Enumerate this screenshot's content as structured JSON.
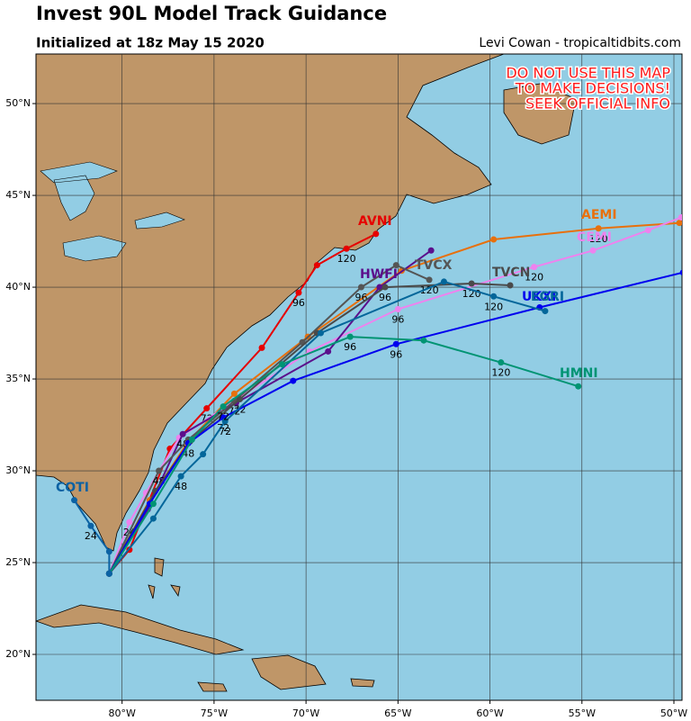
{
  "chart_data": {
    "type": "map",
    "title": "Invest 90L Model Track Guidance",
    "subtitle": "Initialized at 18z May 15 2020",
    "credit": "Levi Cowan - tropicaltidbits.com",
    "warning": [
      "DO NOT USE THIS MAP",
      "TO MAKE DECISIONS!",
      "SEEK OFFICIAL INFO"
    ],
    "xlim": [
      -84.68,
      -49.56
    ],
    "ylim": [
      17.5,
      52.7
    ],
    "xticks": [
      {
        "value": -80,
        "label": "80°W"
      },
      {
        "value": -75,
        "label": "75°W"
      },
      {
        "value": -70,
        "label": "70°W"
      },
      {
        "value": -65,
        "label": "65°W"
      },
      {
        "value": -60,
        "label": "60°W"
      },
      {
        "value": -55,
        "label": "55°W"
      },
      {
        "value": -50,
        "label": "50°W"
      }
    ],
    "yticks": [
      {
        "value": 20,
        "label": "20°N"
      },
      {
        "value": 25,
        "label": "25°N"
      },
      {
        "value": 30,
        "label": "30°N"
      },
      {
        "value": 35,
        "label": "35°N"
      },
      {
        "value": 40,
        "label": "40°N"
      },
      {
        "value": 45,
        "label": "45°N"
      },
      {
        "value": 50,
        "label": "50°N"
      }
    ],
    "grid": true,
    "series": [
      {
        "name": "AVNI",
        "color": "#e60000",
        "lon": [
          -80.7,
          -79.6,
          -77.4,
          -75.4,
          -72.4,
          -70.4,
          -69.4,
          -67.8,
          -66.2
        ],
        "lat": [
          24.4,
          25.7,
          31.2,
          33.4,
          36.7,
          39.7,
          41.2,
          42.1,
          42.9
        ],
        "hour_labels": [
          null,
          null,
          null,
          72,
          null,
          96,
          null,
          120,
          null
        ]
      },
      {
        "name": "AEMI",
        "color": "#e8700c",
        "lon": [
          -80.7,
          -78.5,
          -76.4,
          -73.9,
          -69.9,
          -64.8,
          -59.8,
          -54.1,
          -49.7
        ],
        "lat": [
          24.4,
          28.4,
          31.6,
          34.2,
          37.3,
          40.9,
          42.6,
          43.2,
          43.5
        ],
        "hour_labels": [
          null,
          null,
          null,
          null,
          null,
          null,
          null,
          120,
          null
        ]
      },
      {
        "name": "CEMI",
        "color": "#ee82ee",
        "lon": [
          -80.7,
          -79.6,
          -78.7,
          -76.9,
          -73.9,
          -69.8,
          -65.0,
          -57.6,
          -54.4,
          -51.4,
          -49.6
        ],
        "lat": [
          24.4,
          27.2,
          28.8,
          31.8,
          33.8,
          36.5,
          38.8,
          41.1,
          42.0,
          43.1,
          43.8
        ],
        "hour_labels": [
          null,
          24,
          null,
          null,
          null,
          null,
          96,
          120,
          null,
          null,
          null
        ]
      },
      {
        "name": "HWFI",
        "color": "#5b0f8c",
        "lon": [
          -80.7,
          -78.6,
          -76.7,
          -73.8,
          -68.8,
          -66.0,
          -63.2
        ],
        "lat": [
          24.4,
          27.9,
          32.0,
          33.7,
          36.5,
          40.0,
          42.0
        ],
        "hour_labels": [
          null,
          null,
          48,
          null,
          null,
          null,
          null
        ]
      },
      {
        "name": "TVCX",
        "color": "#555555",
        "lon": [
          -80.7,
          -78.0,
          -76.4,
          -73.9,
          -70.2,
          -67.0,
          -65.1,
          -63.3
        ],
        "lat": [
          24.4,
          30.0,
          31.7,
          33.8,
          37.0,
          40.0,
          41.2,
          40.4
        ],
        "hour_labels": [
          null,
          48,
          null,
          72,
          null,
          96,
          null,
          120
        ]
      },
      {
        "name": "TVCN",
        "color": "#4a4a4a",
        "lon": [
          -80.7,
          -78.2,
          -76.3,
          -73.6,
          -69.4,
          -65.7,
          -61.0,
          -58.9
        ],
        "lat": [
          24.4,
          28.9,
          31.6,
          33.9,
          37.5,
          40.0,
          40.2,
          40.1
        ],
        "hour_labels": [
          null,
          null,
          null,
          72,
          null,
          96,
          120,
          null
        ]
      },
      {
        "name": "UKXI",
        "color": "#0000ee",
        "lon": [
          -80.7,
          -78.5,
          -76.4,
          -74.5,
          -70.7,
          -65.1,
          -57.3,
          -49.5
        ],
        "lat": [
          24.4,
          28.2,
          31.5,
          32.9,
          34.9,
          36.9,
          38.9,
          40.8
        ],
        "hour_labels": [
          null,
          null,
          48,
          72,
          null,
          96,
          null,
          null
        ]
      },
      {
        "name": "EGRI",
        "color": "#03669a",
        "lon": [
          -80.7,
          -78.3,
          -76.8,
          -75.6,
          -74.4,
          -69.2,
          -62.5,
          -59.8,
          -57.0
        ],
        "lat": [
          24.4,
          27.4,
          29.7,
          30.9,
          32.7,
          37.5,
          40.3,
          39.5,
          38.7
        ],
        "hour_labels": [
          null,
          null,
          48,
          null,
          72,
          null,
          null,
          120,
          null
        ]
      },
      {
        "name": "HMNI",
        "color": "#009473",
        "lon": [
          -80.7,
          -78.3,
          -76.2,
          -74.5,
          -71.3,
          -67.6,
          -63.6,
          -59.4,
          -55.2
        ],
        "lat": [
          24.4,
          28.2,
          31.7,
          33.5,
          35.8,
          37.3,
          37.1,
          35.9,
          34.6
        ],
        "hour_labels": [
          null,
          null,
          null,
          72,
          null,
          96,
          null,
          120,
          null
        ]
      },
      {
        "name": "COTI",
        "color": "#0b62a4",
        "lon": [
          -80.7,
          -80.7,
          -81.7,
          -82.6
        ],
        "lat": [
          24.4,
          25.6,
          27.0,
          28.4
        ],
        "hour_labels": [
          null,
          null,
          24,
          null
        ]
      }
    ]
  }
}
